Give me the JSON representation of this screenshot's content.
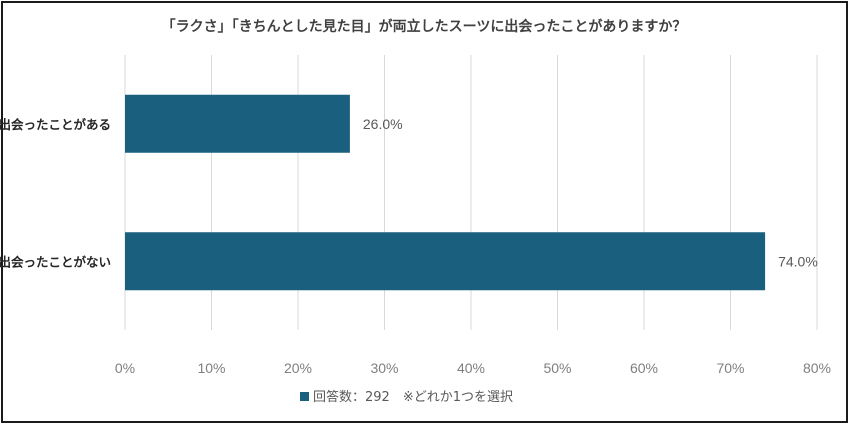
{
  "chart_data": {
    "type": "bar",
    "orientation": "horizontal",
    "title": "「ラクさ」「きちんとした見た目」が両立したスーツに出会ったことがありますか？",
    "categories": [
      "出会ったことがある",
      "出会ったことがない"
    ],
    "values": [
      26.0,
      74.0
    ],
    "data_labels": [
      "26.0%",
      "74.0%"
    ],
    "xlim": [
      0,
      80
    ],
    "x_ticks": [
      "0%",
      "10%",
      "20%",
      "30%",
      "40%",
      "50%",
      "60%",
      "70%",
      "80%"
    ],
    "grid": true,
    "bar_color": "#1a5f7e",
    "legend": {
      "position": "bottom",
      "text": "回答数：292　※どれか1つを選択",
      "color": "#1a5f7e"
    }
  }
}
